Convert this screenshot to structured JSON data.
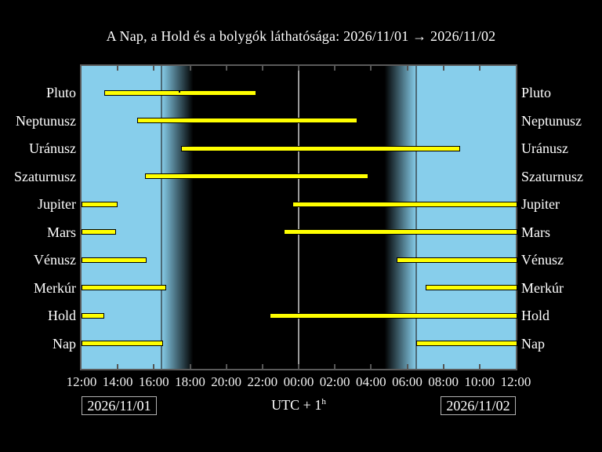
{
  "title": "A Nap, a Hold és a bolygók láthatósága: 2026/11/01 → 2026/11/02",
  "utc_label": "UTC + 1",
  "utc_superscript": "h",
  "dates": {
    "start": "2026/11/01",
    "end": "2026/11/02"
  },
  "colors": {
    "background": "#000000",
    "day_sky": "#87CEEB",
    "night_sky": "#000000",
    "bar_fill": "#FFFF00",
    "bar_outline": "#000000",
    "text": "#FFFFFF",
    "plot_border": "#5a5a5a",
    "gridline_day": "#4d6a76",
    "gridline_night": "#9a9a9a",
    "tick": "#555555",
    "date_box_border": "#b0b0b0"
  },
  "chart_data": {
    "type": "bar",
    "subtype": "horizontal-visibility-intervals",
    "title": "A Nap, a Hold és a bolygók láthatósága: 2026/11/01 → 2026/11/02",
    "window": {
      "start_date": "2026/11/01",
      "start_time": "12:00",
      "end_date": "2026/11/02",
      "end_time": "12:00",
      "hours": 24,
      "timezone": "UTC + 1h"
    },
    "x_ticks": [
      "12:00",
      "14:00",
      "16:00",
      "18:00",
      "20:00",
      "22:00",
      "00:00",
      "02:00",
      "04:00",
      "06:00",
      "08:00",
      "10:00",
      "12:00"
    ],
    "row_labels_shown": "both-sides",
    "legend_position": "none",
    "grid": "vertical-lines-at-sunset-midnight-sunrise",
    "rows": [
      {
        "label": "Pluto",
        "intervals": [
          {
            "start": "13:15",
            "end": "21:35"
          }
        ],
        "transit_marker": "17:25"
      },
      {
        "label": "Neptunusz",
        "intervals": [
          {
            "start": "15:05",
            "end": "03:10"
          }
        ]
      },
      {
        "label": "Uránusz",
        "intervals": [
          {
            "start": "17:30",
            "end": "08:50"
          }
        ]
      },
      {
        "label": "Szaturnusz",
        "intervals": [
          {
            "start": "15:30",
            "end": "03:45"
          }
        ]
      },
      {
        "label": "Jupiter",
        "intervals": [
          {
            "start": "12:00",
            "end": "13:55"
          },
          {
            "start": "23:40",
            "end": "12:00"
          }
        ]
      },
      {
        "label": "Mars",
        "intervals": [
          {
            "start": "12:00",
            "end": "13:50"
          },
          {
            "start": "23:10",
            "end": "12:00"
          }
        ]
      },
      {
        "label": "Vénusz",
        "intervals": [
          {
            "start": "12:00",
            "end": "15:30"
          },
          {
            "start": "05:25",
            "end": "12:00"
          }
        ]
      },
      {
        "label": "Merkúr",
        "intervals": [
          {
            "start": "12:00",
            "end": "16:35"
          },
          {
            "start": "07:00",
            "end": "12:00"
          }
        ]
      },
      {
        "label": "Hold",
        "intervals": [
          {
            "start": "12:00",
            "end": "13:10"
          },
          {
            "start": "22:25",
            "end": "12:00"
          }
        ]
      },
      {
        "label": "Nap",
        "intervals": [
          {
            "start": "12:00",
            "end": "16:25"
          },
          {
            "start": "06:30",
            "end": "12:00"
          }
        ]
      }
    ],
    "day_night": {
      "sunset": "16:25",
      "dusk_end": "18:10",
      "dawn_start": "04:45",
      "sunrise": "06:30"
    },
    "gridlines": [
      "16:25",
      "00:00",
      "06:30"
    ]
  }
}
